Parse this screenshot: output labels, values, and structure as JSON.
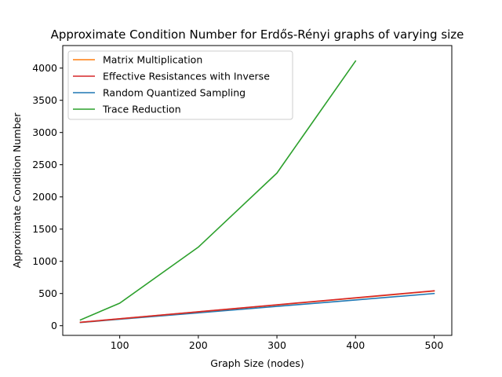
{
  "chart_data": {
    "type": "line",
    "title": "Approximate Condition Number for Erdős-Rényi graphs of varying size",
    "xlabel": "Graph Size (nodes)",
    "ylabel": "Approximate Condition Number",
    "xlim": [
      27.5,
      522.5
    ],
    "ylim": [
      -150,
      4350
    ],
    "xticks": [
      100,
      200,
      300,
      400,
      500
    ],
    "yticks": [
      0,
      500,
      1000,
      1500,
      2000,
      2500,
      3000,
      3500,
      4000
    ],
    "grid": false,
    "legend_position": "top-left",
    "series": [
      {
        "name": "Matrix Multiplication",
        "color": "#ff7f0e",
        "x": [
          50,
          100,
          200,
          300,
          400,
          500
        ],
        "y": [
          52,
          107,
          215,
          322,
          430,
          538
        ]
      },
      {
        "name": "Effective Resistances with Inverse",
        "color": "#d62728",
        "x": [
          50,
          100,
          200,
          300,
          400,
          500
        ],
        "y": [
          54,
          108,
          217,
          325,
          433,
          542
        ]
      },
      {
        "name": "Random Quantized Sampling",
        "color": "#1f77b4",
        "x": [
          50,
          100,
          200,
          300,
          400,
          500
        ],
        "y": [
          50,
          100,
          200,
          300,
          400,
          500
        ]
      },
      {
        "name": "Trace Reduction",
        "color": "#2ca02c",
        "x": [
          50,
          100,
          200,
          300,
          400
        ],
        "y": [
          90,
          350,
          1220,
          2370,
          4110
        ]
      }
    ]
  }
}
